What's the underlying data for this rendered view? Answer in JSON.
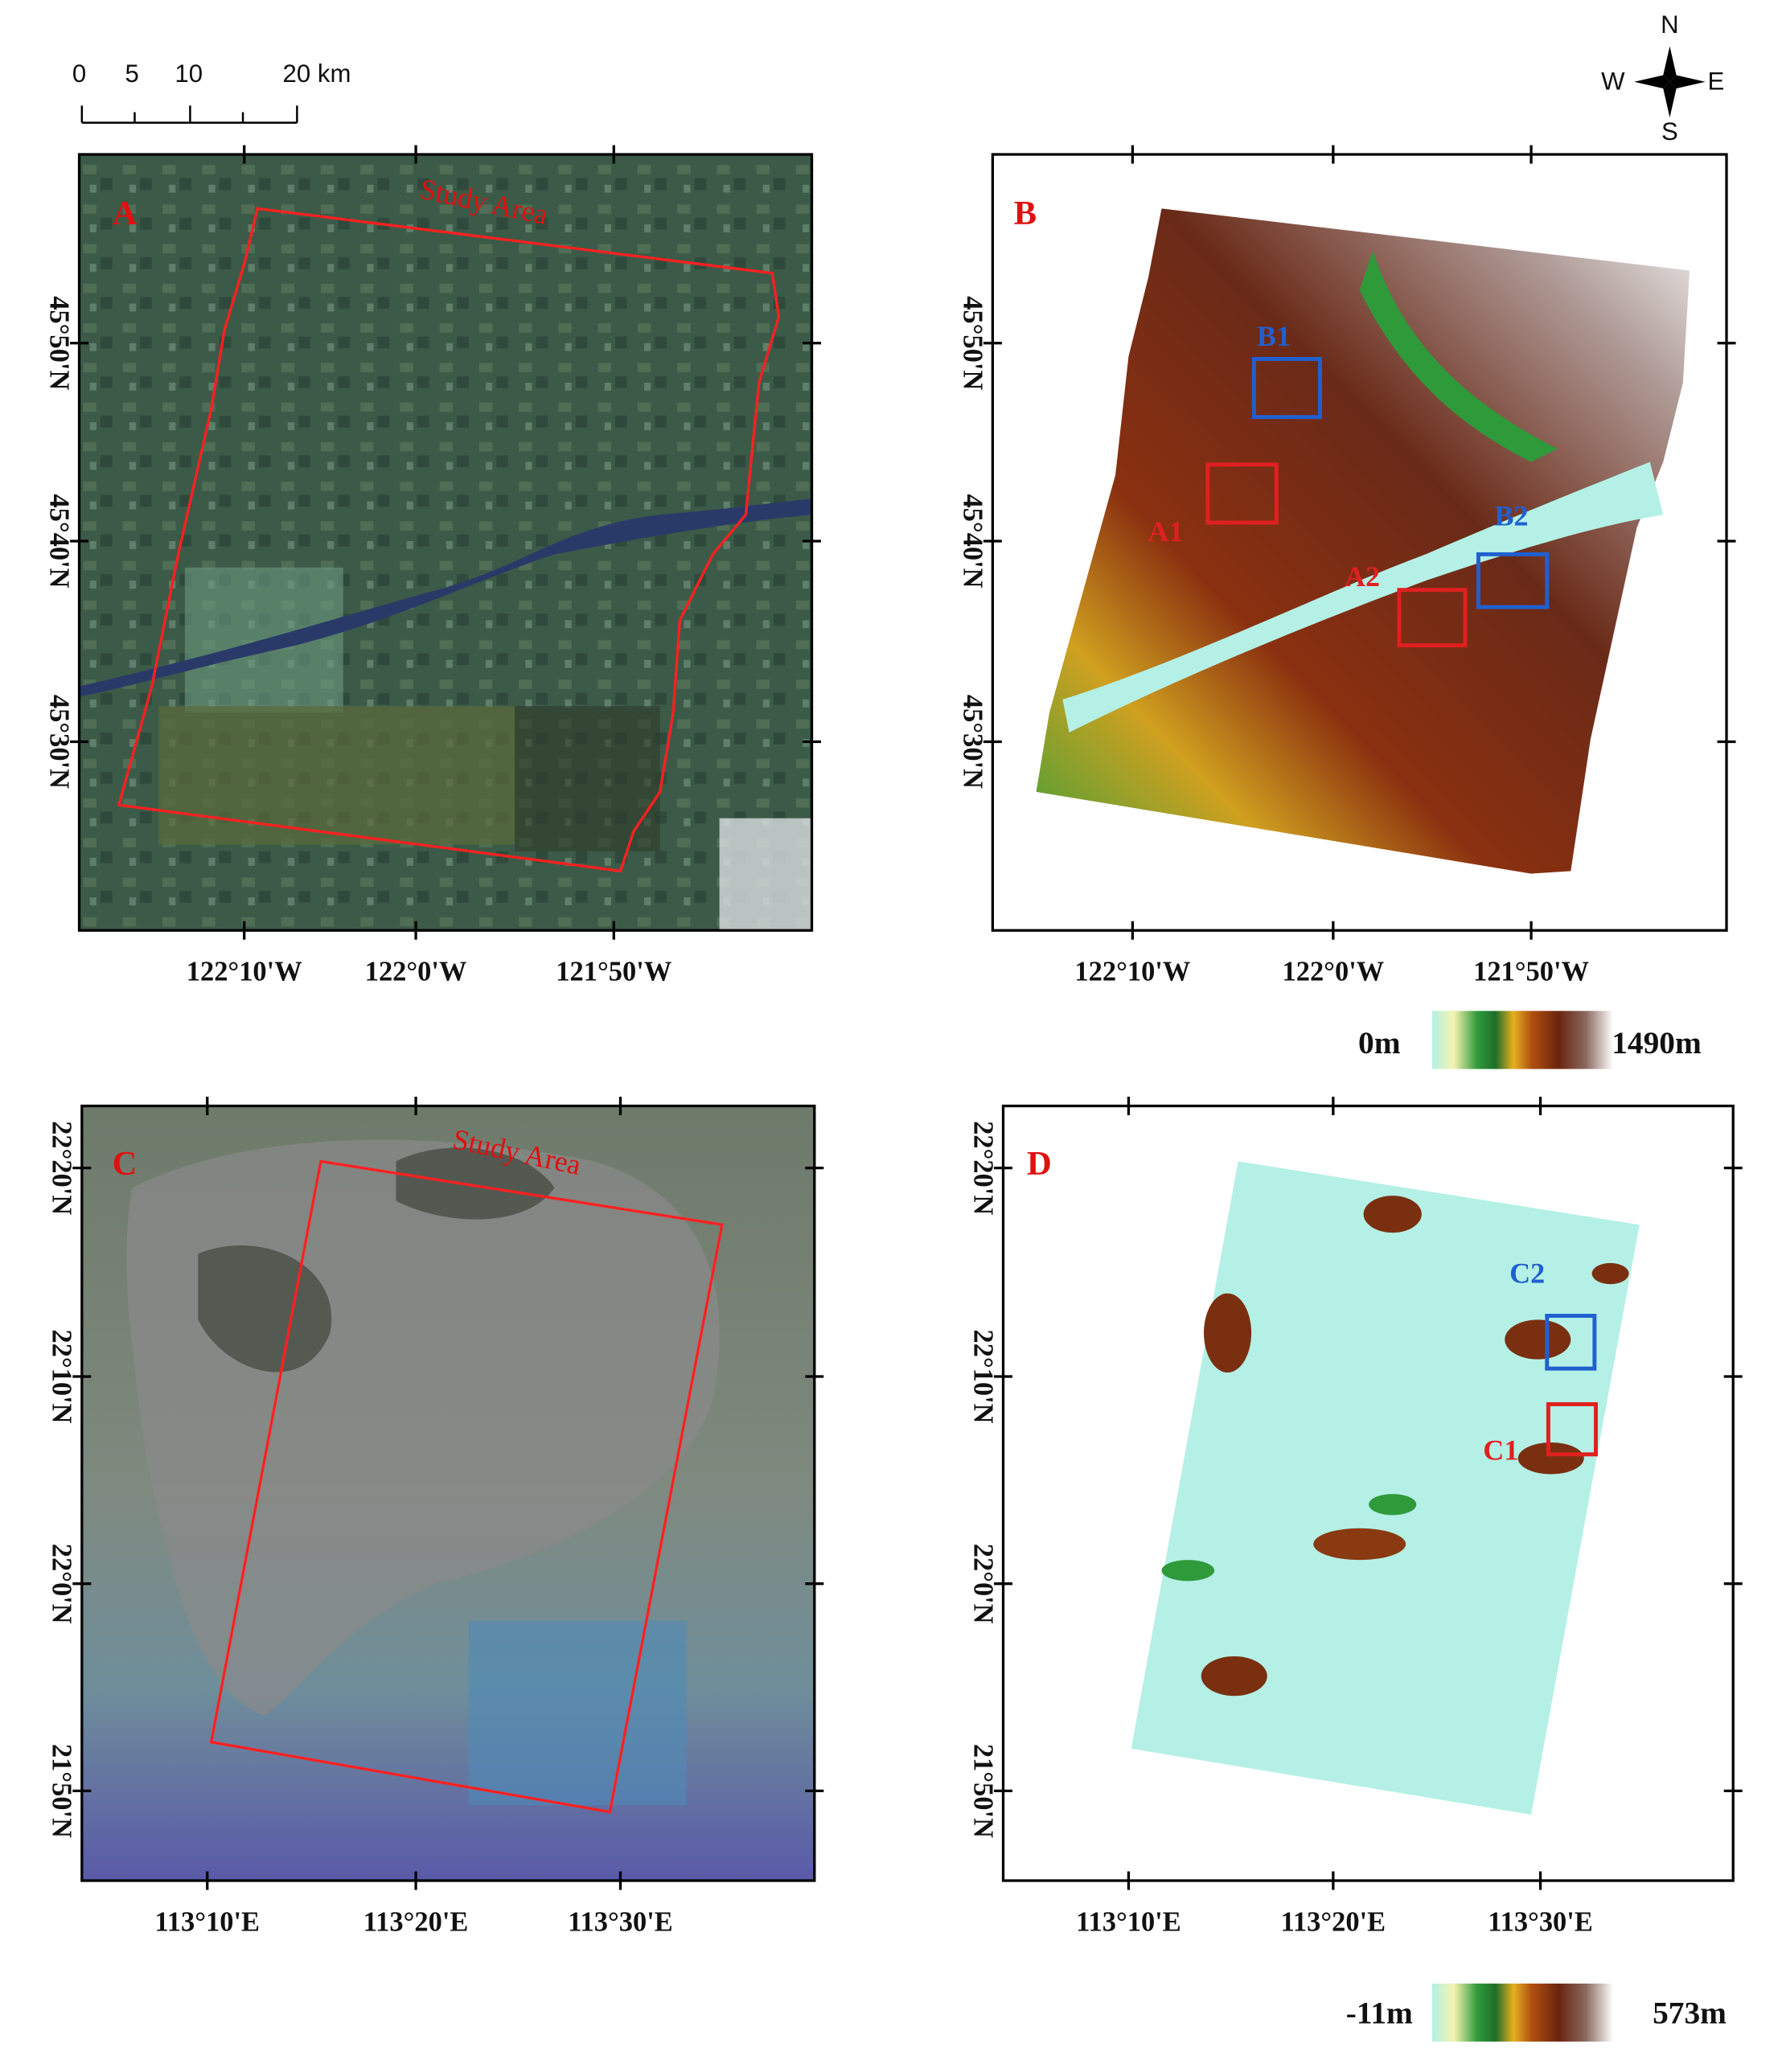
{
  "scale_bar": {
    "labels": [
      "0",
      "5",
      "10",
      "20 km"
    ]
  },
  "compass": {
    "n": "N",
    "s": "S",
    "e": "E",
    "w": "W"
  },
  "panels": [
    {
      "label": "A",
      "annotation": "Study Area",
      "y_ticks": [
        "45°50'N",
        "45°40'N",
        "45°30'N"
      ],
      "x_ticks": [
        "122°10'W",
        "122°0'W",
        "121°50'W"
      ]
    },
    {
      "label": "B",
      "boxes": [
        "B1",
        "A1",
        "B2",
        "A2"
      ],
      "y_ticks": [
        "45°50'N",
        "45°40'N",
        "45°30'N"
      ],
      "x_ticks": [
        "122°10'W",
        "122°0'W",
        "121°50'W"
      ],
      "colorbar": {
        "min": "0m",
        "max": "1490m"
      }
    },
    {
      "label": "C",
      "annotation": "Study Area",
      "y_ticks": [
        "22°20'N",
        "22°10'N",
        "22°0'N",
        "21°50'N"
      ],
      "x_ticks": [
        "113°10'E",
        "113°20'E",
        "113°30'E"
      ]
    },
    {
      "label": "D",
      "boxes": [
        "C2",
        "C1"
      ],
      "y_ticks": [
        "22°20'N",
        "22°10'N",
        "22°0'N",
        "21°50'N"
      ],
      "x_ticks": [
        "113°10'E",
        "113°20'E",
        "113°30'E"
      ],
      "colorbar": {
        "min": "-11m",
        "max": "573m"
      }
    }
  ]
}
